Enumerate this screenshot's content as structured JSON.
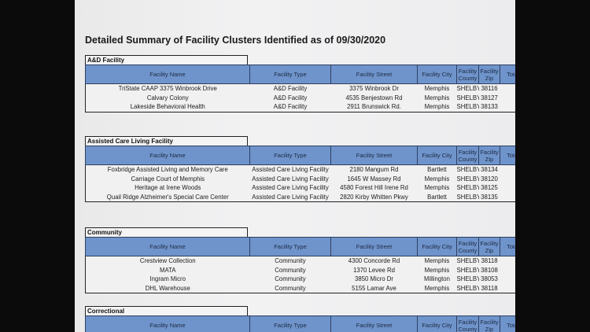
{
  "title": "Detailed Summary of Facility Clusters Identified as of 09/30/2020",
  "columns": [
    "Facility Name",
    "Facility Type",
    "Facility Street",
    "Facility City",
    "Facility County",
    "Facility Zip",
    "Total"
  ],
  "sections": [
    {
      "label": "A&D Facility",
      "rows": [
        [
          "TriState CAAP 3375 Winbrook Drive",
          "A&D Facility",
          "3375 Winbrook Dr",
          "Memphis",
          "SHELBY",
          "38116"
        ],
        [
          "Calvary Colony",
          "A&D Facility",
          "4535 Benjestown Rd",
          "Memphis",
          "SHELBY",
          "38127"
        ],
        [
          "Lakeside Behavioral Health",
          "A&D Facility",
          "2911 Brunswick Rd.",
          "Memphis",
          "SHELBY",
          "38133"
        ]
      ]
    },
    {
      "label": "Assisted Care Living Facility",
      "rows": [
        [
          "Foxbridge Assisted Living and Memory Care",
          "Assisted Care Living Facility",
          "2180 Mangum Rd",
          "Bartlett",
          "SHELBY",
          "38134"
        ],
        [
          "Carriage Court of Memphis",
          "Assisted Care Living Facility",
          "1645 W Massey Rd",
          "Memphis",
          "SHELBY",
          "38120"
        ],
        [
          "Heritage at Irene Woods",
          "Assisted Care Living Facility",
          "4580 Forest Hill Irene Rd",
          "Memphis",
          "SHELBY",
          "38125"
        ],
        [
          "Quail Ridge Alzheimer's Special Care Center",
          "Assisted Care Living Facility",
          "2820 Kirby Whitten Pkwy",
          "Bartlett",
          "SHELBY",
          "38135"
        ]
      ]
    },
    {
      "label": "Community",
      "rows": [
        [
          "Crestview Collection",
          "Community",
          "4300 Concorde Rd",
          "Memphis",
          "SHELBY",
          "38118"
        ],
        [
          "MATA",
          "Community",
          "1370 Levee Rd",
          "Memphis",
          "SHELBY",
          "38108"
        ],
        [
          "Ingram Micro",
          "Community",
          "3850 Micro Dr",
          "Millington",
          "SHELBY",
          "38053"
        ],
        [
          "DHL Warehouse",
          "Community",
          "5155 Lamar Ave",
          "Memphis",
          "SHELBY",
          "38118"
        ]
      ]
    },
    {
      "label": "Correctional",
      "rows": []
    }
  ]
}
